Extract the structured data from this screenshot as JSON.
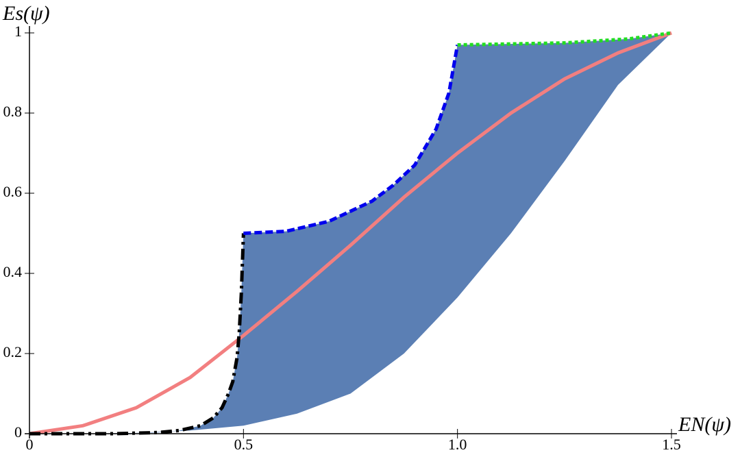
{
  "chart_data": {
    "type": "line",
    "x_label": "EN(ψ)",
    "y_label": "Es(ψ)",
    "xlim": [
      0,
      1.5
    ],
    "ylim": [
      0,
      1
    ],
    "xticks": [
      0,
      0.5,
      {
        "value": 1,
        "label": "1.0"
      },
      1.5
    ],
    "yticks": [
      0,
      0.2,
      0.4,
      0.6,
      0.8,
      1
    ],
    "grid": false,
    "band": {
      "color": "#5b7fb4",
      "x": [
        0,
        0.125,
        0.25,
        0.375,
        0.5,
        0.625,
        0.75,
        0.875,
        1.0,
        1.125,
        1.25,
        1.375,
        1.5
      ],
      "values": [
        0,
        0,
        0.002,
        0.008,
        0.02,
        0.05,
        0.1,
        0.2,
        0.34,
        0.5,
        0.68,
        0.87,
        1.0
      ]
    },
    "series": [
      {
        "color": "#f27f80",
        "width": 5,
        "dash": "none",
        "x": [
          0,
          0.125,
          0.25,
          0.375,
          0.5,
          0.625,
          0.75,
          0.875,
          1.0,
          1.125,
          1.25,
          1.375,
          1.5
        ],
        "values": [
          0,
          0.02,
          0.065,
          0.14,
          0.245,
          0.355,
          0.47,
          0.59,
          0.7,
          0.8,
          0.885,
          0.95,
          1.0
        ]
      },
      {
        "color": "#000000",
        "width": 5,
        "dash": "16 6 4 6",
        "x": [
          0,
          0.2,
          0.3,
          0.35,
          0.4,
          0.43,
          0.45,
          0.465,
          0.475,
          0.485,
          0.49,
          0.495,
          0.5
        ],
        "values": [
          0,
          0,
          0.003,
          0.008,
          0.02,
          0.04,
          0.065,
          0.1,
          0.13,
          0.19,
          0.25,
          0.35,
          0.5
        ]
      },
      {
        "color": "#0000ee",
        "width": 5,
        "dash": "11 5",
        "x": [
          0.5,
          0.6,
          0.7,
          0.8,
          0.85,
          0.9,
          0.95,
          0.98,
          1.0
        ],
        "values": [
          0.5,
          0.505,
          0.53,
          0.58,
          0.62,
          0.67,
          0.76,
          0.85,
          0.97
        ]
      },
      {
        "color": "#22dd22",
        "width": 5,
        "dash": "5 4",
        "x": [
          1.0,
          1.25,
          1.4,
          1.5
        ],
        "values": [
          0.97,
          0.975,
          0.985,
          1.0
        ]
      }
    ]
  }
}
